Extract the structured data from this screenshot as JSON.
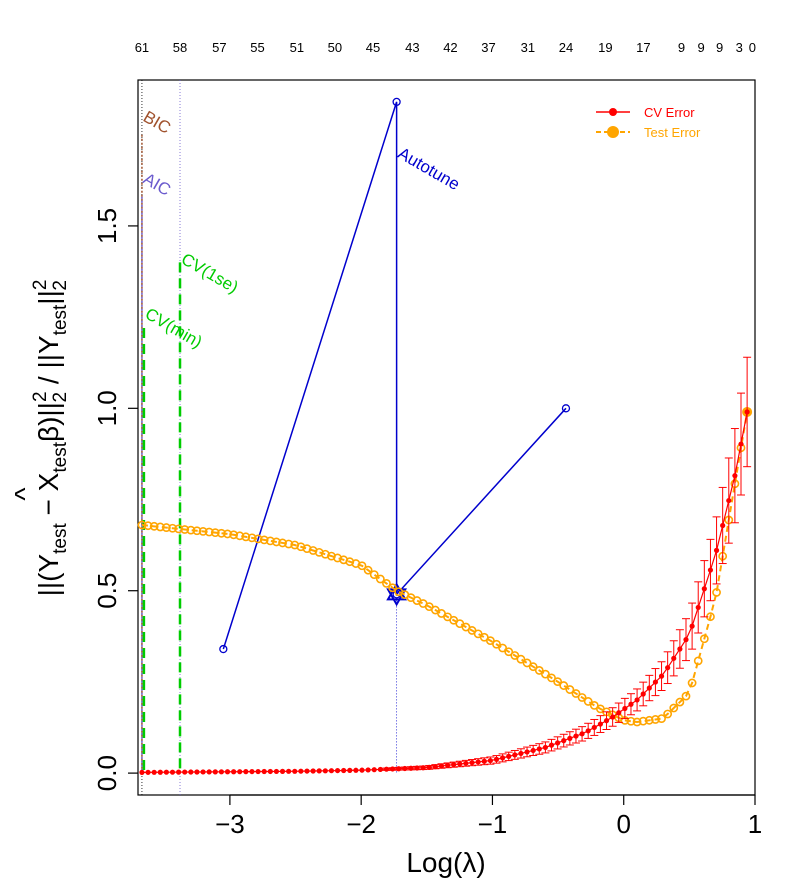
{
  "chart_data": {
    "type": "line",
    "xlabel": "Log(λ)",
    "ylabel": "||(Y_test − X_test β̂)||²₂ / ||Y_test||²₂",
    "xlim": [
      -3.7,
      1.0
    ],
    "ylim": [
      -0.06,
      1.9
    ],
    "x_ticks": [
      -3,
      -2,
      -1,
      0,
      1
    ],
    "y_ticks": [
      0.0,
      0.5,
      1.0,
      1.5
    ],
    "x_tick_labels": [
      "−3",
      "−2",
      "−1",
      "0",
      "1"
    ],
    "y_tick_labels": [
      "0.0",
      "0.5",
      "1.0",
      "1.5"
    ],
    "top_axis": {
      "x": [
        -3.67,
        -3.38,
        -3.08,
        -2.79,
        -2.49,
        -2.2,
        -1.91,
        -1.61,
        -1.32,
        -1.03,
        -0.73,
        -0.44,
        -0.14,
        0.15,
        0.44,
        0.59,
        0.73,
        0.88,
        0.98
      ],
      "labels": [
        "61",
        "58",
        "57",
        "55",
        "51",
        "50",
        "45",
        "43",
        "42",
        "37",
        "31",
        "24",
        "19",
        "17",
        "9",
        "9",
        "9",
        "3",
        "0"
      ]
    },
    "legend": {
      "position": "top-right",
      "entries": [
        {
          "label": "CV Error",
          "color": "#ff0000"
        },
        {
          "label": "Test Error",
          "color": "#ffa500"
        }
      ]
    },
    "series": [
      {
        "name": "CV Error",
        "color": "#ff0000",
        "style": "points-with-errorbars",
        "x_start": -3.67,
        "x_end": 0.94,
        "n": 100,
        "x_knots": [
          -3.67,
          -2.5,
          -2.0,
          -1.5,
          -1.0,
          -0.6,
          -0.3,
          -0.1,
          0.1,
          0.3,
          0.5,
          0.7,
          0.85,
          0.94
        ],
        "y_knots": [
          0.002,
          0.005,
          0.008,
          0.015,
          0.035,
          0.07,
          0.11,
          0.15,
          0.2,
          0.27,
          0.38,
          0.6,
          0.82,
          0.99
        ],
        "err_knots": [
          0.0,
          0.0,
          0.002,
          0.005,
          0.01,
          0.015,
          0.02,
          0.025,
          0.03,
          0.04,
          0.06,
          0.09,
          0.13,
          0.15
        ]
      },
      {
        "name": "Test Error",
        "color": "#ffa500",
        "style": "circles-dashed",
        "x_start": -3.67,
        "x_end": 0.94,
        "n": 100,
        "x_knots": [
          -3.67,
          -3.0,
          -2.5,
          -2.0,
          -1.73,
          -1.5,
          -1.0,
          -0.5,
          -0.2,
          0.0,
          0.1,
          0.3,
          0.5,
          0.7,
          0.85,
          0.94
        ],
        "y_knots": [
          0.68,
          0.655,
          0.625,
          0.57,
          0.5,
          0.46,
          0.36,
          0.25,
          0.18,
          0.145,
          0.14,
          0.15,
          0.22,
          0.48,
          0.8,
          0.99
        ]
      }
    ],
    "autotune_path": {
      "color": "#0000cd",
      "points": [
        [
          -3.05,
          0.34
        ],
        [
          -1.73,
          1.84
        ],
        [
          -1.73,
          0.49
        ],
        [
          -0.44,
          1.0
        ]
      ],
      "star": [
        -1.73,
        0.49
      ]
    },
    "vlines": [
      {
        "label": "BIC",
        "x": -3.67,
        "color": "#a0522d"
      },
      {
        "label": "AIC",
        "x": -3.67,
        "color": "#6a5acd"
      },
      {
        "label": "CV(min)",
        "x": -3.66,
        "color": "#00cc00"
      },
      {
        "label": "CV(1se)",
        "x": -3.38,
        "color": "#00cc00"
      },
      {
        "label": "Autotune",
        "x": -1.73,
        "color": "#0000cd"
      }
    ]
  }
}
